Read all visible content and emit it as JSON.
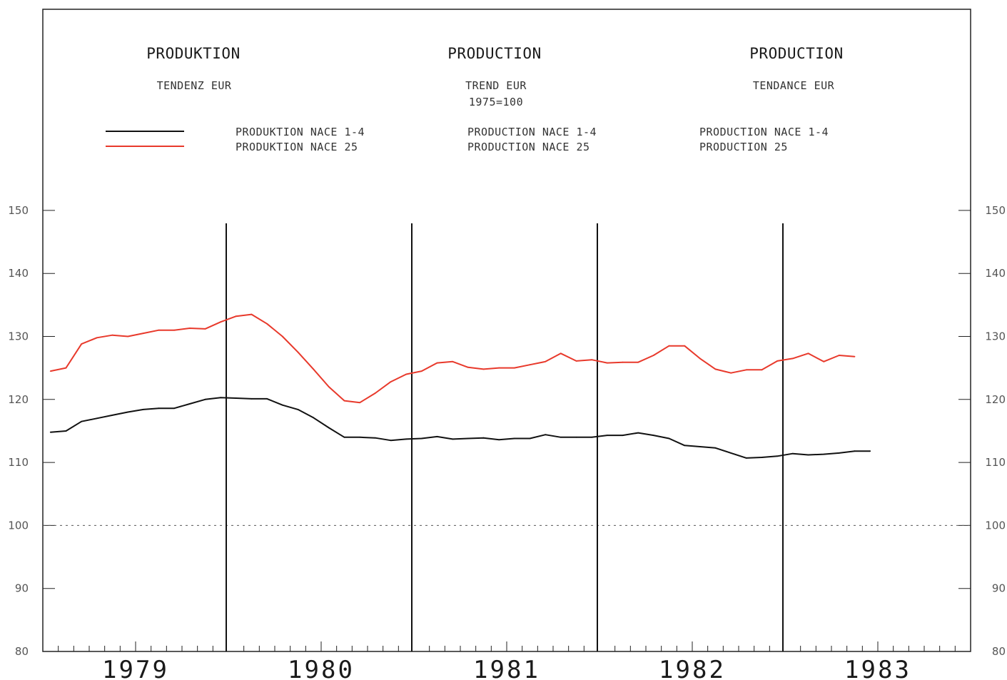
{
  "titles": [
    {
      "heading": "PRODUKTION",
      "sub1": "TENDENZ EUR",
      "sub2": ""
    },
    {
      "heading": "PRODUCTION",
      "sub1": "TREND EUR",
      "sub2": "1975=100"
    },
    {
      "heading": "PRODUCTION",
      "sub1": "TENDANCE EUR",
      "sub2": ""
    }
  ],
  "legend": {
    "de": [
      "PRODUKTION NACE 1-4",
      "PRODUKTION NACE 25"
    ],
    "en": [
      "PRODUCTION NACE 1-4",
      "PRODUCTION NACE 25"
    ],
    "fr": [
      "PRODUCTION NACE 1-4",
      "PRODUCTION 25"
    ]
  },
  "colors": {
    "nace_1_4": "#111111",
    "nace_25": "#e8392b",
    "frame": "#222222"
  },
  "chart_data": {
    "type": "line",
    "title": "",
    "xlabel": "",
    "ylabel": "",
    "x_unit": "month",
    "x_start": "1979-01",
    "x_range": [
      "1979-01",
      "1983-12"
    ],
    "ylim": [
      80,
      150
    ],
    "y_ticks": [
      80,
      90,
      100,
      110,
      120,
      130,
      140,
      150
    ],
    "year_labels": [
      "1979",
      "1980",
      "1981",
      "1982",
      "1983"
    ],
    "reference_line": 100,
    "legend_position": "top",
    "series": [
      {
        "name": "PRODUKTION NACE 1-4",
        "color": "#111111",
        "x": [
          "1979-01",
          "1979-02",
          "1979-03",
          "1979-04",
          "1979-05",
          "1979-06",
          "1979-07",
          "1979-08",
          "1979-09",
          "1979-10",
          "1979-11",
          "1979-12",
          "1980-01",
          "1980-02",
          "1980-03",
          "1980-04",
          "1980-05",
          "1980-06",
          "1980-07",
          "1980-08",
          "1980-09",
          "1980-10",
          "1980-11",
          "1980-12",
          "1981-01",
          "1981-02",
          "1981-03",
          "1981-04",
          "1981-05",
          "1981-06",
          "1981-07",
          "1981-08",
          "1981-09",
          "1981-10",
          "1981-11",
          "1981-12",
          "1982-01",
          "1982-02",
          "1982-03",
          "1982-04",
          "1982-05",
          "1982-06",
          "1982-07",
          "1982-08",
          "1982-09",
          "1982-10",
          "1982-11",
          "1982-12",
          "1983-01",
          "1983-02",
          "1983-03",
          "1983-04",
          "1983-05",
          "1983-06"
        ],
        "values": [
          114.8,
          115.0,
          116.5,
          117.0,
          117.5,
          118.0,
          118.4,
          118.6,
          118.6,
          119.3,
          120.0,
          120.3,
          120.2,
          120.1,
          120.1,
          119.1,
          118.4,
          117.1,
          115.5,
          114.0,
          114.0,
          113.9,
          113.5,
          113.7,
          113.8,
          114.1,
          113.7,
          113.8,
          113.9,
          113.6,
          113.8,
          113.8,
          114.4,
          114.0,
          114.0,
          114.0,
          114.3,
          114.3,
          114.7,
          114.3,
          113.8,
          112.7,
          112.5,
          112.3,
          111.5,
          110.7,
          110.8,
          111.0,
          111.4,
          111.2,
          111.3,
          111.5,
          111.8,
          111.8
        ]
      },
      {
        "name": "PRODUKTION NACE 25",
        "color": "#e8392b",
        "x": [
          "1979-01",
          "1979-02",
          "1979-03",
          "1979-04",
          "1979-05",
          "1979-06",
          "1979-07",
          "1979-08",
          "1979-09",
          "1979-10",
          "1979-11",
          "1979-12",
          "1980-01",
          "1980-02",
          "1980-03",
          "1980-04",
          "1980-05",
          "1980-06",
          "1980-07",
          "1980-08",
          "1980-09",
          "1980-10",
          "1980-11",
          "1980-12",
          "1981-01",
          "1981-02",
          "1981-03",
          "1981-04",
          "1981-05",
          "1981-06",
          "1981-07",
          "1981-08",
          "1981-09",
          "1981-10",
          "1981-11",
          "1981-12",
          "1982-01",
          "1982-02",
          "1982-03",
          "1982-04",
          "1982-05",
          "1982-06",
          "1982-07",
          "1982-08",
          "1982-09",
          "1982-10",
          "1982-11",
          "1982-12",
          "1983-01",
          "1983-02",
          "1983-03",
          "1983-04",
          "1983-05"
        ],
        "values": [
          124.5,
          125.0,
          128.8,
          129.8,
          130.2,
          130.0,
          130.5,
          131.0,
          131.0,
          131.3,
          131.2,
          132.3,
          133.2,
          133.5,
          132.0,
          130.0,
          127.5,
          124.8,
          122.0,
          119.8,
          119.5,
          121.0,
          122.8,
          124.0,
          124.5,
          125.8,
          126.0,
          125.1,
          124.8,
          125.0,
          125.0,
          125.5,
          126.0,
          127.3,
          126.1,
          126.3,
          125.8,
          125.9,
          125.9,
          127.0,
          128.5,
          128.5,
          126.5,
          124.8,
          124.2,
          124.7,
          124.7,
          126.1,
          126.5,
          127.3,
          126.0,
          127.0,
          126.8
        ]
      }
    ]
  }
}
